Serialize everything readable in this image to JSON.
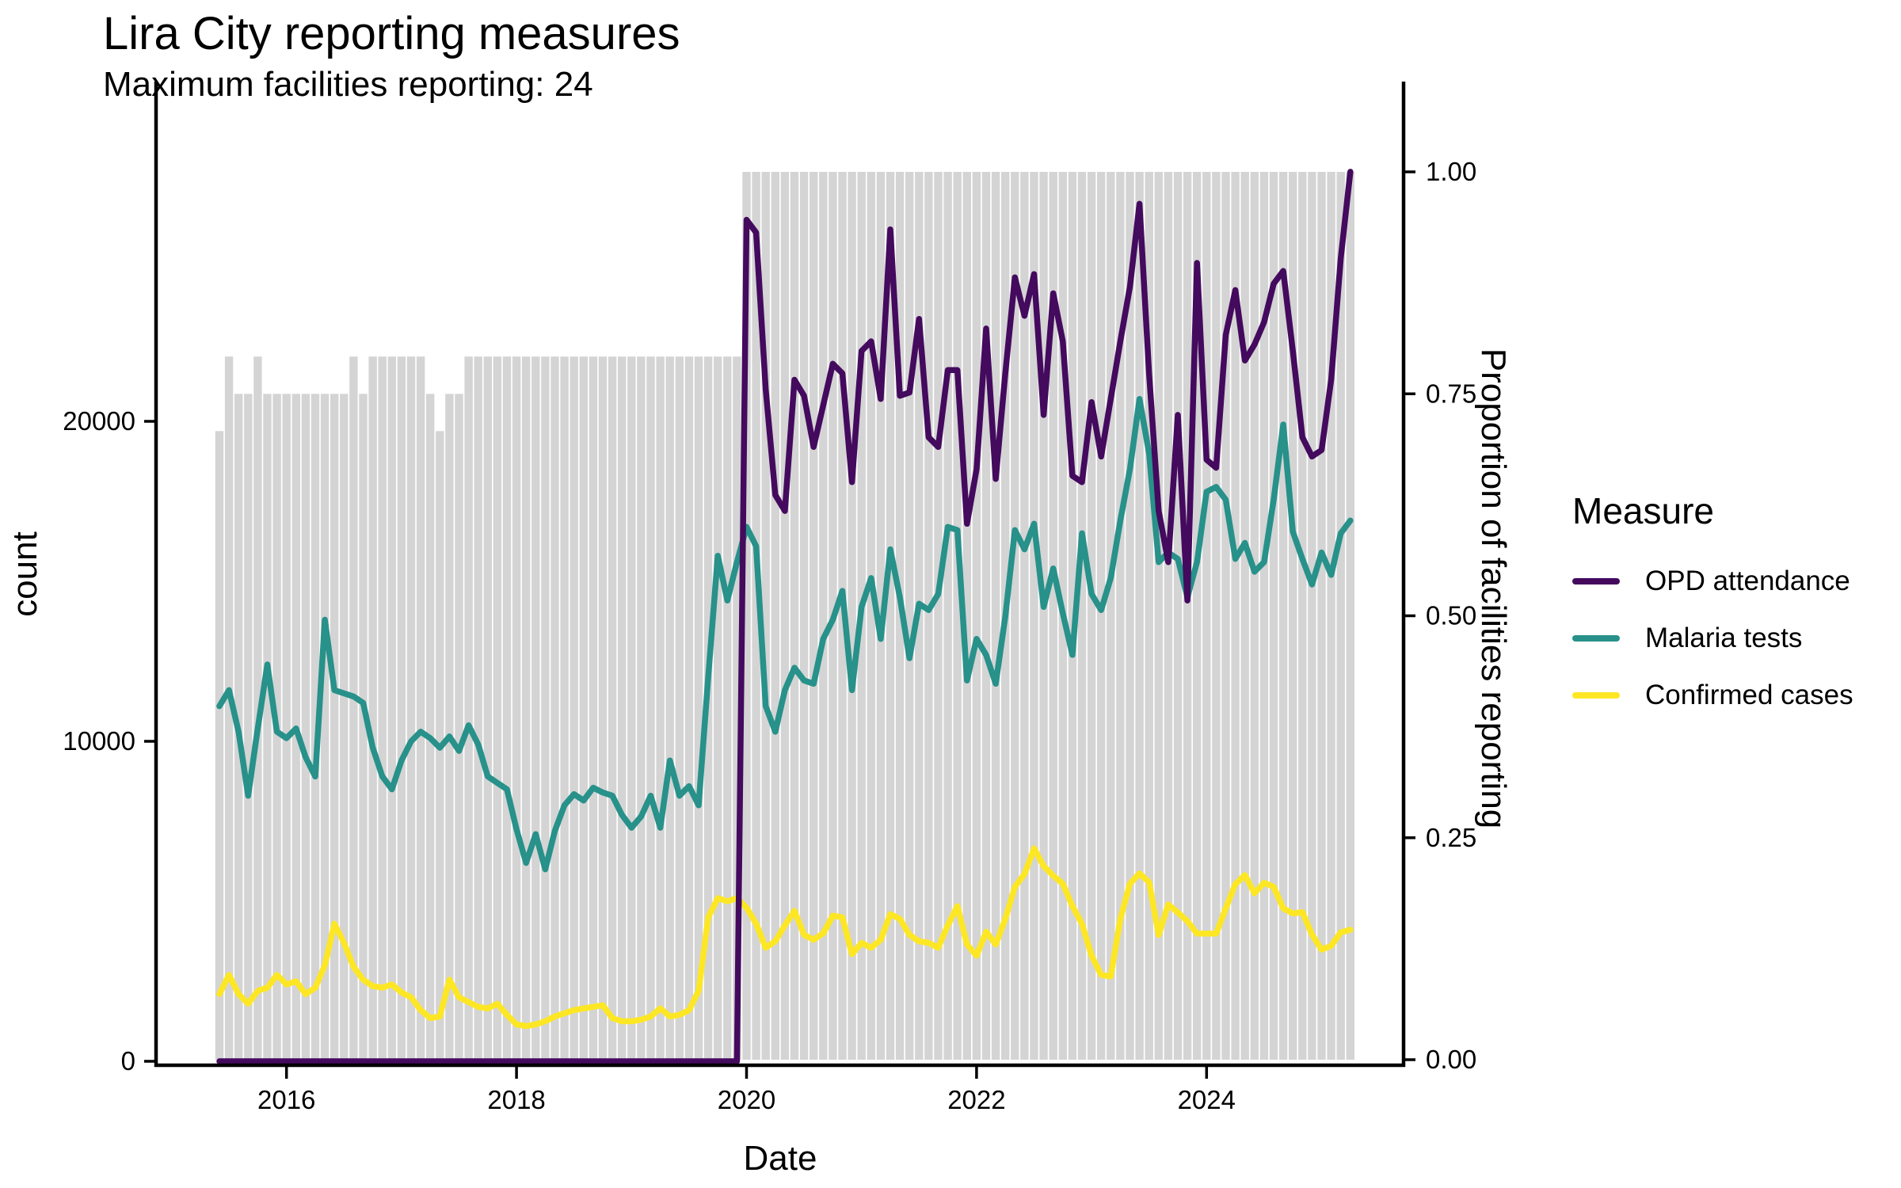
{
  "title": "Lira City reporting measures",
  "subtitle": "Maximum facilities reporting: 24",
  "chart_data": {
    "type": "line+bar",
    "frequency": "monthly",
    "x_start_month": "2015-06",
    "x_end_month": "2025-04",
    "xlabel": "Date",
    "ylabel_left": "count",
    "ylabel_right": "Proportion of facilities reporting",
    "legend_title": "Measure",
    "ylim_left": [
      0,
      28000
    ],
    "ylim_right": [
      0,
      1
    ],
    "x_ticks": [
      {
        "label": "2016",
        "month_index": 7
      },
      {
        "label": "2018",
        "month_index": 31
      },
      {
        "label": "2020",
        "month_index": 55
      },
      {
        "label": "2022",
        "month_index": 79
      },
      {
        "label": "2024",
        "month_index": 103
      }
    ],
    "y_ticks_left": [
      {
        "label": "0",
        "value": 0
      },
      {
        "label": "10000",
        "value": 10000
      },
      {
        "label": "20000",
        "value": 20000
      }
    ],
    "y_ticks_right": [
      {
        "label": "0.00",
        "value": 0.0
      },
      {
        "label": "0.25",
        "value": 0.25
      },
      {
        "label": "0.50",
        "value": 0.5
      },
      {
        "label": "0.75",
        "value": 0.75
      },
      {
        "label": "1.00",
        "value": 1.0
      }
    ],
    "bars": {
      "name": "Proportion of facilities reporting",
      "color": "#d4d4d4",
      "max_facilities": 24,
      "values": [
        0.708,
        0.792,
        0.75,
        0.75,
        0.792,
        0.75,
        0.75,
        0.75,
        0.75,
        0.75,
        0.75,
        0.75,
        0.75,
        0.75,
        0.792,
        0.75,
        0.792,
        0.792,
        0.792,
        0.792,
        0.792,
        0.792,
        0.75,
        0.708,
        0.75,
        0.75,
        0.792,
        0.792,
        0.792,
        0.792,
        0.792,
        0.792,
        0.792,
        0.792,
        0.792,
        0.792,
        0.792,
        0.792,
        0.792,
        0.792,
        0.792,
        0.792,
        0.792,
        0.792,
        0.792,
        0.792,
        0.792,
        0.792,
        0.792,
        0.792,
        0.792,
        0.792,
        0.792,
        0.792,
        0.792,
        1,
        1,
        1,
        1,
        1,
        1,
        1,
        1,
        1,
        1,
        1,
        1,
        1,
        1,
        1,
        1,
        1,
        1,
        1,
        1,
        1,
        1,
        1,
        1,
        1,
        1,
        1,
        1,
        1,
        1,
        1,
        1,
        1,
        1,
        1,
        1,
        1,
        1,
        1,
        1,
        1,
        1,
        1,
        1,
        1,
        1,
        1,
        1,
        1,
        1,
        1,
        1,
        1,
        1,
        1,
        1,
        1,
        1,
        1,
        1,
        1,
        1,
        1,
        1
      ]
    },
    "series": [
      {
        "name": "OPD attendance",
        "color": "#440a5e",
        "values": [
          0,
          0,
          0,
          0,
          0,
          0,
          0,
          0,
          0,
          0,
          0,
          0,
          0,
          0,
          0,
          0,
          0,
          0,
          0,
          0,
          0,
          0,
          0,
          0,
          0,
          0,
          0,
          0,
          0,
          0,
          0,
          0,
          0,
          0,
          0,
          0,
          0,
          0,
          0,
          0,
          0,
          0,
          0,
          0,
          0,
          0,
          0,
          0,
          0,
          0,
          0,
          0,
          0,
          0,
          0,
          26300,
          25900,
          21000,
          17700,
          17200,
          21300,
          20800,
          19200,
          20500,
          21800,
          21500,
          18100,
          22200,
          22500,
          20700,
          26000,
          20800,
          20900,
          23200,
          19500,
          19200,
          21600,
          21600,
          16800,
          18500,
          22900,
          18200,
          21500,
          24500,
          23300,
          24600,
          20200,
          24000,
          22500,
          18300,
          18100,
          20600,
          18900,
          20700,
          22500,
          24200,
          26800,
          21500,
          17200,
          15600,
          20200,
          14400,
          24950,
          18800,
          18550,
          22700,
          24100,
          21900,
          22400,
          23100,
          24300,
          24700,
          22200,
          19500,
          18900,
          19100,
          21300,
          25100,
          27800
        ]
      },
      {
        "name": "Malaria tests",
        "color": "#27918a",
        "values": [
          11100,
          11600,
          10300,
          8300,
          10400,
          12400,
          10300,
          10100,
          10400,
          9500,
          8900,
          13800,
          11600,
          11500,
          11400,
          11200,
          9800,
          8900,
          8500,
          9400,
          10000,
          10300,
          10100,
          9800,
          10150,
          9700,
          10500,
          9900,
          8900,
          8700,
          8500,
          7250,
          6200,
          7100,
          6000,
          7200,
          8000,
          8350,
          8150,
          8550,
          8400,
          8300,
          7700,
          7300,
          7650,
          8300,
          7300,
          9400,
          8300,
          8600,
          8000,
          12000,
          15800,
          14400,
          15600,
          16700,
          16100,
          11100,
          10300,
          11600,
          12300,
          11900,
          11800,
          13200,
          13800,
          14700,
          11600,
          14200,
          15100,
          13200,
          16000,
          14500,
          12600,
          14300,
          14100,
          14600,
          16700,
          16600,
          11900,
          13200,
          12700,
          11800,
          13900,
          16600,
          16000,
          16800,
          14200,
          15400,
          14000,
          12700,
          16500,
          14600,
          14100,
          15100,
          16900,
          18500,
          20700,
          19000,
          15600,
          15900,
          15700,
          14500,
          15600,
          17800,
          17950,
          17550,
          15700,
          16200,
          15300,
          15600,
          17550,
          19900,
          16550,
          15700,
          14900,
          15900,
          15200,
          16500,
          16900
        ]
      },
      {
        "name": "Confirmed cases",
        "color": "#fde725",
        "values": [
          2100,
          2700,
          2100,
          1800,
          2200,
          2300,
          2700,
          2400,
          2500,
          2100,
          2300,
          3000,
          4300,
          3700,
          2950,
          2550,
          2350,
          2300,
          2400,
          2150,
          2000,
          1600,
          1350,
          1400,
          2550,
          2000,
          1850,
          1700,
          1650,
          1800,
          1450,
          1150,
          1100,
          1150,
          1250,
          1400,
          1500,
          1600,
          1650,
          1700,
          1750,
          1350,
          1250,
          1250,
          1300,
          1400,
          1650,
          1400,
          1450,
          1600,
          2200,
          4500,
          5100,
          5000,
          5100,
          4800,
          4300,
          3550,
          3750,
          4250,
          4700,
          3950,
          3800,
          4000,
          4550,
          4500,
          3350,
          3700,
          3550,
          3800,
          4600,
          4450,
          3950,
          3750,
          3700,
          3550,
          4250,
          4850,
          3650,
          3300,
          4050,
          3650,
          4450,
          5450,
          5850,
          6650,
          6100,
          5800,
          5550,
          4850,
          4300,
          3300,
          2700,
          2650,
          4450,
          5550,
          5870,
          5600,
          3950,
          4900,
          4650,
          4380,
          3990,
          3990,
          3990,
          4780,
          5540,
          5820,
          5250,
          5580,
          5450,
          4780,
          4620,
          4660,
          3960,
          3490,
          3610,
          4030,
          4110
        ]
      }
    ]
  }
}
